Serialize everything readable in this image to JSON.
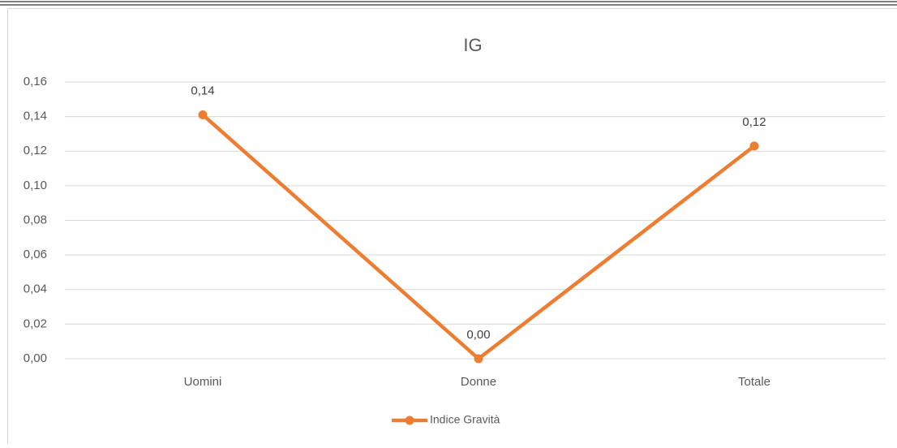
{
  "chart_data": {
    "type": "line",
    "title": "IG",
    "categories": [
      "Uomini",
      "Donne",
      "Totale"
    ],
    "series": [
      {
        "name": "Indice Gravità",
        "color": "#ed7d31",
        "values": [
          0.141,
          0,
          0.123
        ],
        "value_labels": [
          "0,14",
          "0,00",
          "0,12"
        ]
      }
    ],
    "ylim": [
      0,
      0.16
    ],
    "yticks": [
      {
        "value": 0,
        "label": "0,00"
      },
      {
        "value": 0.02,
        "label": "0,02"
      },
      {
        "value": 0.04,
        "label": "0,04"
      },
      {
        "value": 0.06,
        "label": "0,06"
      },
      {
        "value": 0.08,
        "label": "0,08"
      },
      {
        "value": 0.1,
        "label": "0,10"
      },
      {
        "value": 0.12,
        "label": "0,12"
      },
      {
        "value": 0.14,
        "label": "0,14"
      },
      {
        "value": 0.16,
        "label": "0,16"
      }
    ],
    "grid": true,
    "legend": "bottom"
  }
}
